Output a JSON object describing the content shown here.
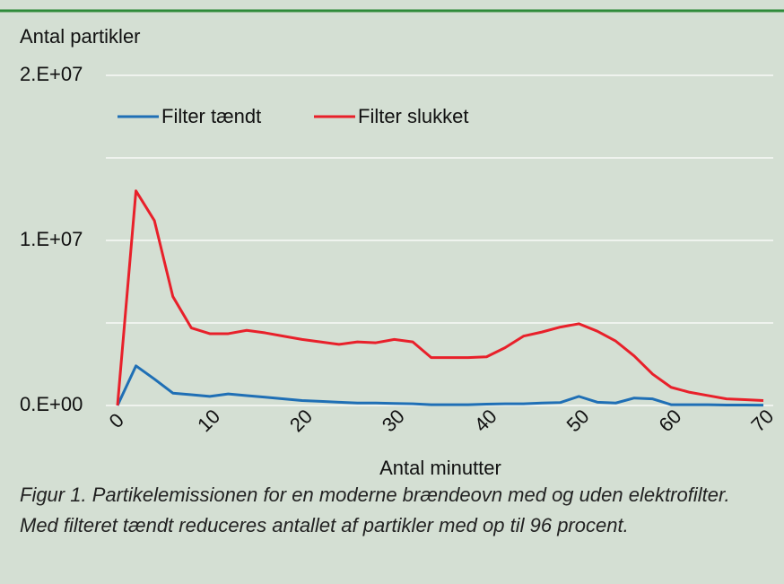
{
  "chart_data": {
    "type": "line",
    "ylabel": "Antal partikler",
    "xlabel": "Antal minutter",
    "caption": "Figur 1. Partikelemissionen for en moderne brændeovn med og uden elektrofilter. Med filteret tændt reduceres antallet af partikler med op til 96 procent.",
    "x": [
      0,
      2,
      4,
      6,
      8,
      10,
      12,
      14,
      16,
      18,
      20,
      22,
      24,
      26,
      28,
      30,
      32,
      34,
      36,
      38,
      40,
      42,
      44,
      46,
      48,
      50,
      52,
      54,
      56,
      58,
      60,
      62,
      64,
      66,
      68,
      70
    ],
    "series": [
      {
        "name": "Filter tændt",
        "color": "#1f6fb5",
        "values": [
          0,
          2400000,
          1600000,
          750000,
          650000,
          550000,
          700000,
          600000,
          500000,
          400000,
          300000,
          250000,
          200000,
          150000,
          150000,
          120000,
          100000,
          50000,
          50000,
          50000,
          80000,
          100000,
          100000,
          150000,
          180000,
          550000,
          200000,
          150000,
          450000,
          400000,
          50000,
          50000,
          50000,
          30000,
          30000,
          20000
        ]
      },
      {
        "name": "Filter slukket",
        "color": "#e8202a",
        "values": [
          0,
          13000000,
          11200000,
          6600000,
          4700000,
          4350000,
          4350000,
          4550000,
          4400000,
          4200000,
          4000000,
          3850000,
          3700000,
          3850000,
          3800000,
          4000000,
          3850000,
          2900000,
          2900000,
          2900000,
          2950000,
          3500000,
          4200000,
          4450000,
          4750000,
          4950000,
          4500000,
          3900000,
          3000000,
          1900000,
          1100000,
          800000,
          600000,
          400000,
          350000,
          300000
        ]
      }
    ],
    "xlim": [
      0,
      70
    ],
    "xticks": [
      0,
      10,
      20,
      30,
      40,
      50,
      60,
      70
    ],
    "ylim": [
      0,
      20000000
    ],
    "yticks": [
      {
        "value": 0,
        "label": "0.E+00"
      },
      {
        "value": 10000000,
        "label": "1.E+07"
      },
      {
        "value": 20000000,
        "label": "2.E+07"
      }
    ],
    "ygrid": [
      0,
      5000000,
      10000000,
      15000000,
      20000000
    ],
    "grid": true
  }
}
